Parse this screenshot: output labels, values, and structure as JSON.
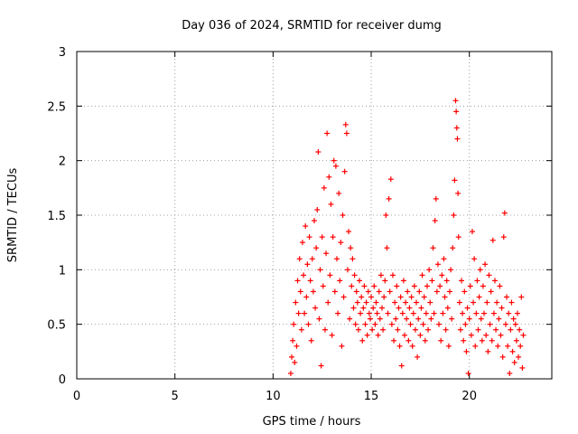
{
  "chart_data": {
    "type": "scatter",
    "title": "Day 036 of 2024, SRMTID for receiver dumg",
    "xlabel": "GPS time / hours",
    "ylabel": "SRMTID / TECUs",
    "xlim": [
      0,
      24.2
    ],
    "ylim": [
      0,
      3
    ],
    "xticks": [
      0,
      5,
      10,
      15,
      20
    ],
    "yticks": [
      0,
      0.5,
      1,
      1.5,
      2,
      2.5,
      3
    ],
    "ytick_labels": [
      "0",
      "0.5",
      "1",
      "1.5",
      "2",
      "2.5",
      "3"
    ],
    "grid": true,
    "marker": "+",
    "marker_color": "#ff0000",
    "series": [
      {
        "name": "SRMTID",
        "points": [
          [
            10.9,
            0.05
          ],
          [
            10.95,
            0.2
          ],
          [
            11.0,
            0.35
          ],
          [
            11.05,
            0.5
          ],
          [
            11.1,
            0.15
          ],
          [
            11.15,
            0.7
          ],
          [
            11.2,
            0.3
          ],
          [
            11.25,
            0.9
          ],
          [
            11.3,
            0.6
          ],
          [
            11.35,
            1.1
          ],
          [
            11.4,
            0.8
          ],
          [
            11.45,
            0.45
          ],
          [
            11.5,
            1.25
          ],
          [
            11.55,
            0.95
          ],
          [
            11.6,
            0.6
          ],
          [
            11.65,
            1.4
          ],
          [
            11.7,
            0.75
          ],
          [
            11.75,
            1.05
          ],
          [
            11.8,
            0.5
          ],
          [
            11.85,
            1.3
          ],
          [
            11.9,
            0.9
          ],
          [
            11.95,
            0.35
          ],
          [
            12.0,
            1.1
          ],
          [
            12.05,
            0.8
          ],
          [
            12.1,
            1.45
          ],
          [
            12.15,
            0.65
          ],
          [
            12.2,
            1.2
          ],
          [
            12.25,
            1.55
          ],
          [
            12.3,
            2.08
          ],
          [
            12.35,
            0.55
          ],
          [
            12.4,
            1.0
          ],
          [
            12.45,
            0.12
          ],
          [
            12.5,
            1.3
          ],
          [
            12.55,
            0.85
          ],
          [
            12.6,
            1.75
          ],
          [
            12.65,
            0.45
          ],
          [
            12.7,
            1.15
          ],
          [
            12.75,
            2.25
          ],
          [
            12.8,
            0.7
          ],
          [
            12.85,
            1.85
          ],
          [
            12.9,
            0.95
          ],
          [
            12.95,
            1.6
          ],
          [
            13.0,
            0.4
          ],
          [
            13.05,
            1.3
          ],
          [
            13.1,
            2.0
          ],
          [
            13.15,
            0.8
          ],
          [
            13.2,
            1.95
          ],
          [
            13.25,
            1.1
          ],
          [
            13.3,
            0.6
          ],
          [
            13.35,
            1.7
          ],
          [
            13.4,
            0.9
          ],
          [
            13.45,
            1.25
          ],
          [
            13.5,
            0.3
          ],
          [
            13.55,
            1.5
          ],
          [
            13.6,
            0.75
          ],
          [
            13.65,
            1.9
          ],
          [
            13.7,
            2.33
          ],
          [
            13.75,
            2.25
          ],
          [
            13.8,
            1.0
          ],
          [
            13.85,
            1.35
          ],
          [
            13.9,
            0.55
          ],
          [
            13.95,
            1.2
          ],
          [
            14.0,
            0.85
          ],
          [
            14.05,
            1.1
          ],
          [
            14.1,
            0.65
          ],
          [
            14.15,
            0.95
          ],
          [
            14.2,
            0.5
          ],
          [
            14.25,
            0.8
          ],
          [
            14.3,
            0.7
          ],
          [
            14.35,
            0.45
          ],
          [
            14.4,
            0.9
          ],
          [
            14.45,
            0.6
          ],
          [
            14.5,
            0.75
          ],
          [
            14.55,
            0.35
          ],
          [
            14.6,
            0.65
          ],
          [
            14.65,
            0.85
          ],
          [
            14.7,
            0.5
          ],
          [
            14.75,
            0.7
          ],
          [
            14.8,
            0.4
          ],
          [
            14.85,
            0.8
          ],
          [
            14.9,
            0.6
          ],
          [
            14.95,
            0.55
          ],
          [
            15.0,
            0.75
          ],
          [
            15.05,
            0.45
          ],
          [
            15.1,
            0.65
          ],
          [
            15.15,
            0.85
          ],
          [
            15.2,
            0.5
          ],
          [
            15.25,
            0.7
          ],
          [
            15.3,
            0.6
          ],
          [
            15.35,
            0.4
          ],
          [
            15.4,
            0.8
          ],
          [
            15.45,
            0.55
          ],
          [
            15.5,
            0.95
          ],
          [
            15.55,
            0.65
          ],
          [
            15.6,
            0.45
          ],
          [
            15.65,
            0.75
          ],
          [
            15.7,
            0.9
          ],
          [
            15.75,
            1.5
          ],
          [
            15.8,
            1.2
          ],
          [
            15.85,
            0.6
          ],
          [
            15.9,
            1.65
          ],
          [
            15.95,
            0.8
          ],
          [
            16.0,
            1.83
          ],
          [
            16.05,
            0.5
          ],
          [
            16.1,
            0.95
          ],
          [
            16.15,
            0.35
          ],
          [
            16.2,
            0.7
          ],
          [
            16.25,
            0.55
          ],
          [
            16.3,
            0.85
          ],
          [
            16.35,
            0.45
          ],
          [
            16.4,
            0.65
          ],
          [
            16.45,
            0.3
          ],
          [
            16.5,
            0.75
          ],
          [
            16.55,
            0.12
          ],
          [
            16.6,
            0.6
          ],
          [
            16.65,
            0.9
          ],
          [
            16.7,
            0.4
          ],
          [
            16.75,
            0.7
          ],
          [
            16.8,
            0.55
          ],
          [
            16.85,
            0.8
          ],
          [
            16.9,
            0.35
          ],
          [
            16.95,
            0.65
          ],
          [
            17.0,
            0.5
          ],
          [
            17.05,
            0.75
          ],
          [
            17.1,
            0.3
          ],
          [
            17.15,
            0.6
          ],
          [
            17.2,
            0.85
          ],
          [
            17.25,
            0.45
          ],
          [
            17.3,
            0.7
          ],
          [
            17.35,
            0.2
          ],
          [
            17.4,
            0.55
          ],
          [
            17.45,
            0.8
          ],
          [
            17.5,
            0.4
          ],
          [
            17.55,
            0.65
          ],
          [
            17.6,
            0.95
          ],
          [
            17.65,
            0.5
          ],
          [
            17.7,
            0.75
          ],
          [
            17.75,
            0.35
          ],
          [
            17.8,
            0.6
          ],
          [
            17.85,
            0.85
          ],
          [
            17.9,
            0.45
          ],
          [
            17.95,
            1.0
          ],
          [
            18.0,
            0.7
          ],
          [
            18.05,
            0.55
          ],
          [
            18.1,
            0.9
          ],
          [
            18.15,
            1.2
          ],
          [
            18.2,
            0.6
          ],
          [
            18.25,
            1.45
          ],
          [
            18.3,
            1.65
          ],
          [
            18.35,
            0.8
          ],
          [
            18.4,
            1.05
          ],
          [
            18.45,
            0.5
          ],
          [
            18.5,
            0.85
          ],
          [
            18.55,
            0.35
          ],
          [
            18.6,
            0.95
          ],
          [
            18.65,
            0.6
          ],
          [
            18.7,
            1.1
          ],
          [
            18.75,
            0.75
          ],
          [
            18.8,
            0.45
          ],
          [
            18.85,
            0.9
          ],
          [
            18.9,
            0.65
          ],
          [
            18.95,
            0.3
          ],
          [
            19.0,
            0.8
          ],
          [
            19.05,
            1.0
          ],
          [
            19.1,
            0.55
          ],
          [
            19.15,
            1.2
          ],
          [
            19.2,
            1.5
          ],
          [
            19.25,
            1.82
          ],
          [
            19.3,
            2.55
          ],
          [
            19.33,
            2.45
          ],
          [
            19.36,
            2.3
          ],
          [
            19.39,
            2.2
          ],
          [
            19.42,
            1.7
          ],
          [
            19.45,
            1.3
          ],
          [
            19.5,
            0.7
          ],
          [
            19.55,
            0.45
          ],
          [
            19.6,
            0.9
          ],
          [
            19.65,
            0.6
          ],
          [
            19.7,
            0.35
          ],
          [
            19.75,
            0.8
          ],
          [
            19.8,
            0.5
          ],
          [
            19.85,
            0.25
          ],
          [
            19.9,
            0.65
          ],
          [
            19.95,
            0.05
          ],
          [
            20.0,
            0.55
          ],
          [
            20.05,
            0.85
          ],
          [
            20.1,
            0.4
          ],
          [
            20.15,
            1.35
          ],
          [
            20.2,
            0.7
          ],
          [
            20.25,
            1.1
          ],
          [
            20.3,
            0.3
          ],
          [
            20.35,
            0.6
          ],
          [
            20.4,
            0.9
          ],
          [
            20.45,
            0.45
          ],
          [
            20.5,
            0.75
          ],
          [
            20.55,
            1.0
          ],
          [
            20.6,
            0.55
          ],
          [
            20.65,
            0.35
          ],
          [
            20.7,
            0.85
          ],
          [
            20.75,
            0.6
          ],
          [
            20.8,
            1.05
          ],
          [
            20.85,
            0.4
          ],
          [
            20.9,
            0.7
          ],
          [
            20.95,
            0.25
          ],
          [
            21.0,
            0.95
          ],
          [
            21.05,
            0.5
          ],
          [
            21.1,
            0.8
          ],
          [
            21.15,
            0.35
          ],
          [
            21.2,
            1.27
          ],
          [
            21.25,
            0.6
          ],
          [
            21.3,
            0.9
          ],
          [
            21.35,
            0.45
          ],
          [
            21.4,
            0.7
          ],
          [
            21.45,
            0.3
          ],
          [
            21.5,
            0.55
          ],
          [
            21.55,
            0.85
          ],
          [
            21.6,
            0.4
          ],
          [
            21.65,
            0.65
          ],
          [
            21.7,
            0.2
          ],
          [
            21.75,
            1.3
          ],
          [
            21.8,
            1.52
          ],
          [
            21.85,
            0.5
          ],
          [
            21.9,
            0.75
          ],
          [
            21.95,
            0.3
          ],
          [
            22.0,
            0.6
          ],
          [
            22.05,
            0.05
          ],
          [
            22.1,
            0.45
          ],
          [
            22.15,
            0.7
          ],
          [
            22.2,
            0.25
          ],
          [
            22.25,
            0.55
          ],
          [
            22.3,
            0.15
          ],
          [
            22.35,
            0.5
          ],
          [
            22.4,
            0.35
          ],
          [
            22.45,
            0.6
          ],
          [
            22.5,
            0.2
          ],
          [
            22.55,
            0.45
          ],
          [
            22.6,
            0.3
          ],
          [
            22.65,
            0.75
          ],
          [
            22.7,
            0.1
          ],
          [
            22.75,
            0.4
          ]
        ]
      }
    ]
  }
}
